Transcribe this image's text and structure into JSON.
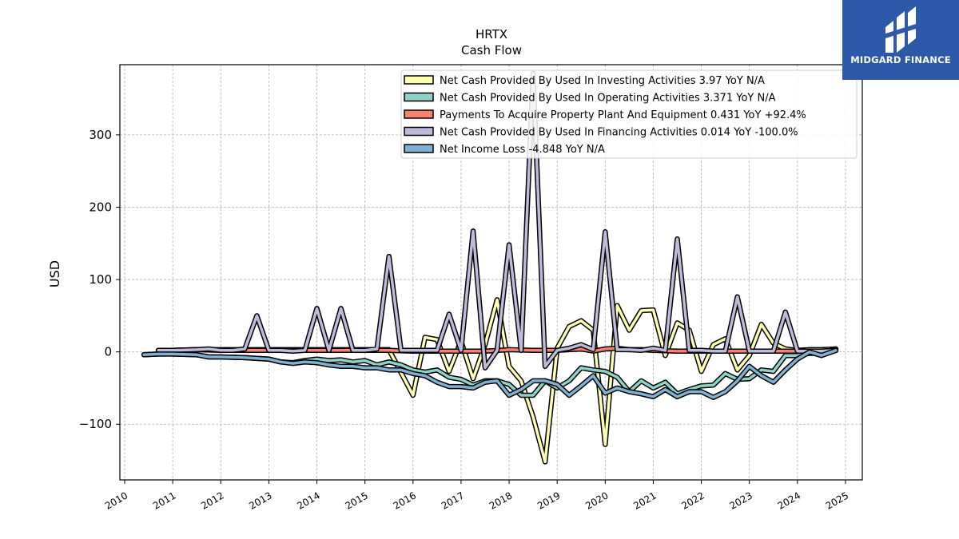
{
  "brand": {
    "name": "MIDGARD FINANCE",
    "bg_color": "#2d59a8"
  },
  "chart_data": {
    "type": "line",
    "title": "HRTX",
    "subtitle": "Cash Flow",
    "ylabel": "USD",
    "xlabel": "",
    "xlim": [
      2009.9,
      2025.35
    ],
    "ylim": [
      -177,
      397
    ],
    "x_ticks": [
      "2010",
      "2011",
      "2012",
      "2013",
      "2014",
      "2015",
      "2016",
      "2017",
      "2018",
      "2019",
      "2020",
      "2021",
      "2022",
      "2023",
      "2024",
      "2025"
    ],
    "y_ticks": [
      -100,
      0,
      100,
      200,
      300
    ],
    "y_tick_labels": [
      "−100",
      "0",
      "100",
      "200",
      "300"
    ],
    "grid": true,
    "legend_position": "top-right",
    "series": [
      {
        "name": "Net Cash Provided By Used In Investing Activities",
        "legend": "Net Cash Provided By Used In Investing Activities  3.97 YoY N/A",
        "color": "#ffffb3",
        "points": [
          [
            2010.7,
            2
          ],
          [
            2011.0,
            2
          ],
          [
            2011.5,
            3
          ],
          [
            2012.0,
            3
          ],
          [
            2012.5,
            3
          ],
          [
            2013.0,
            3
          ],
          [
            2013.5,
            3
          ],
          [
            2014.0,
            3
          ],
          [
            2014.5,
            3
          ],
          [
            2015.0,
            3
          ],
          [
            2015.5,
            3
          ],
          [
            2016.0,
            -60
          ],
          [
            2016.25,
            20
          ],
          [
            2016.5,
            17
          ],
          [
            2016.75,
            -27
          ],
          [
            2017.0,
            15
          ],
          [
            2017.25,
            -37
          ],
          [
            2017.5,
            10
          ],
          [
            2017.75,
            72
          ],
          [
            2018.0,
            -20
          ],
          [
            2018.25,
            -40
          ],
          [
            2018.5,
            -90
          ],
          [
            2018.75,
            -152
          ],
          [
            2019.0,
            5
          ],
          [
            2019.25,
            35
          ],
          [
            2019.5,
            43
          ],
          [
            2019.75,
            30
          ],
          [
            2020.0,
            -128
          ],
          [
            2020.25,
            64
          ],
          [
            2020.5,
            30
          ],
          [
            2020.75,
            57
          ],
          [
            2021.0,
            58
          ],
          [
            2021.25,
            -5
          ],
          [
            2021.5,
            40
          ],
          [
            2021.75,
            30
          ],
          [
            2022.0,
            -27
          ],
          [
            2022.25,
            10
          ],
          [
            2022.5,
            18
          ],
          [
            2022.75,
            -25
          ],
          [
            2023.0,
            -5
          ],
          [
            2023.25,
            38
          ],
          [
            2023.5,
            12
          ],
          [
            2023.75,
            4
          ],
          [
            2024.0,
            2
          ],
          [
            2024.25,
            3
          ],
          [
            2024.5,
            3
          ],
          [
            2024.8,
            4
          ]
        ]
      },
      {
        "name": "Net Cash Provided By Used In Operating Activities",
        "legend": "Net Cash Provided By Used In Operating Activities  3.371 YoY N/A",
        "color": "#8dd3c7",
        "points": [
          [
            2010.4,
            -4
          ],
          [
            2010.7,
            -3
          ],
          [
            2011.0,
            -3
          ],
          [
            2011.5,
            -4
          ],
          [
            2011.75,
            -7
          ],
          [
            2012.0,
            -7
          ],
          [
            2012.5,
            -8
          ],
          [
            2013.0,
            -10
          ],
          [
            2013.25,
            -14
          ],
          [
            2013.5,
            -15
          ],
          [
            2013.75,
            -12
          ],
          [
            2014.0,
            -10
          ],
          [
            2014.25,
            -12
          ],
          [
            2014.5,
            -11
          ],
          [
            2014.75,
            -14
          ],
          [
            2015.0,
            -12
          ],
          [
            2015.25,
            -18
          ],
          [
            2015.5,
            -14
          ],
          [
            2015.75,
            -18
          ],
          [
            2016.0,
            -25
          ],
          [
            2016.25,
            -28
          ],
          [
            2016.5,
            -25
          ],
          [
            2016.75,
            -35
          ],
          [
            2017.0,
            -38
          ],
          [
            2017.25,
            -46
          ],
          [
            2017.5,
            -40
          ],
          [
            2017.75,
            -40
          ],
          [
            2018.0,
            -45
          ],
          [
            2018.25,
            -60
          ],
          [
            2018.5,
            -60
          ],
          [
            2018.75,
            -40
          ],
          [
            2019.0,
            -50
          ],
          [
            2019.25,
            -40
          ],
          [
            2019.5,
            -22
          ],
          [
            2019.75,
            -25
          ],
          [
            2020.0,
            -27
          ],
          [
            2020.25,
            -35
          ],
          [
            2020.5,
            -55
          ],
          [
            2020.75,
            -40
          ],
          [
            2021.0,
            -50
          ],
          [
            2021.25,
            -42
          ],
          [
            2021.5,
            -58
          ],
          [
            2021.75,
            -52
          ],
          [
            2022.0,
            -47
          ],
          [
            2022.25,
            -46
          ],
          [
            2022.5,
            -30
          ],
          [
            2022.75,
            -38
          ],
          [
            2023.0,
            -37
          ],
          [
            2023.25,
            -25
          ],
          [
            2023.5,
            -27
          ],
          [
            2023.75,
            -5
          ],
          [
            2024.0,
            -5
          ],
          [
            2024.25,
            -2
          ],
          [
            2024.5,
            -2
          ],
          [
            2024.8,
            4
          ]
        ]
      },
      {
        "name": "Payments To Acquire Property Plant And Equipment",
        "legend": "Payments To Acquire Property Plant And Equipment  0.431 YoY +92.4%",
        "color": "#fb8072",
        "points": [
          [
            2010.7,
            2
          ],
          [
            2011.0,
            2
          ],
          [
            2011.5,
            3
          ],
          [
            2012.0,
            2
          ],
          [
            2012.5,
            2
          ],
          [
            2013.0,
            2
          ],
          [
            2013.5,
            2
          ],
          [
            2014.0,
            2
          ],
          [
            2014.5,
            2
          ],
          [
            2015.0,
            2
          ],
          [
            2015.5,
            2
          ],
          [
            2016.0,
            1
          ],
          [
            2016.5,
            1
          ],
          [
            2017.0,
            1
          ],
          [
            2017.5,
            1
          ],
          [
            2018.0,
            3
          ],
          [
            2018.5,
            2
          ],
          [
            2019.0,
            2
          ],
          [
            2019.25,
            3
          ],
          [
            2019.5,
            4
          ],
          [
            2019.75,
            1
          ],
          [
            2020.0,
            4
          ],
          [
            2020.25,
            5
          ],
          [
            2020.5,
            3
          ],
          [
            2020.75,
            3
          ],
          [
            2021.0,
            2
          ],
          [
            2021.5,
            1
          ],
          [
            2022.0,
            1
          ],
          [
            2022.5,
            1
          ],
          [
            2023.0,
            1
          ],
          [
            2023.5,
            1
          ],
          [
            2024.0,
            1
          ],
          [
            2024.5,
            1
          ],
          [
            2024.8,
            2
          ]
        ]
      },
      {
        "name": "Net Cash Provided By Used In Financing Activities",
        "legend": "Net Cash Provided By Used In Financing Activities  0.014 YoY -100.0%",
        "color": "#bebada",
        "points": [
          [
            2010.7,
            2
          ],
          [
            2011.0,
            2
          ],
          [
            2011.5,
            3
          ],
          [
            2011.75,
            4
          ],
          [
            2012.0,
            2
          ],
          [
            2012.25,
            2
          ],
          [
            2012.5,
            4
          ],
          [
            2012.75,
            50
          ],
          [
            2013.0,
            2
          ],
          [
            2013.25,
            2
          ],
          [
            2013.5,
            1
          ],
          [
            2013.75,
            2
          ],
          [
            2014.0,
            60
          ],
          [
            2014.25,
            2
          ],
          [
            2014.5,
            60
          ],
          [
            2014.75,
            2
          ],
          [
            2015.0,
            2
          ],
          [
            2015.25,
            4
          ],
          [
            2015.5,
            132
          ],
          [
            2015.75,
            2
          ],
          [
            2016.0,
            2
          ],
          [
            2016.25,
            2
          ],
          [
            2016.5,
            2
          ],
          [
            2016.75,
            52
          ],
          [
            2017.0,
            2
          ],
          [
            2017.25,
            167
          ],
          [
            2017.5,
            -22
          ],
          [
            2017.75,
            2
          ],
          [
            2018.0,
            148
          ],
          [
            2018.25,
            2
          ],
          [
            2018.5,
            385
          ],
          [
            2018.75,
            -20
          ],
          [
            2019.0,
            2
          ],
          [
            2019.25,
            5
          ],
          [
            2019.5,
            10
          ],
          [
            2019.75,
            3
          ],
          [
            2020.0,
            166
          ],
          [
            2020.25,
            3
          ],
          [
            2020.5,
            3
          ],
          [
            2020.75,
            2
          ],
          [
            2021.0,
            5
          ],
          [
            2021.25,
            2
          ],
          [
            2021.5,
            156
          ],
          [
            2021.75,
            2
          ],
          [
            2022.0,
            2
          ],
          [
            2022.25,
            1
          ],
          [
            2022.5,
            1
          ],
          [
            2022.75,
            76
          ],
          [
            2023.0,
            1
          ],
          [
            2023.25,
            1
          ],
          [
            2023.5,
            1
          ],
          [
            2023.75,
            55
          ],
          [
            2024.0,
            1
          ],
          [
            2024.25,
            1
          ],
          [
            2024.5,
            1
          ],
          [
            2024.8,
            2
          ]
        ]
      },
      {
        "name": "Net Income Loss",
        "legend": "Net Income Loss  -4.848 YoY N/A",
        "color": "#80b1d3",
        "points": [
          [
            2010.4,
            -4
          ],
          [
            2010.7,
            -3
          ],
          [
            2011.0,
            -3
          ],
          [
            2011.5,
            -4
          ],
          [
            2011.75,
            -7
          ],
          [
            2012.0,
            -7
          ],
          [
            2012.5,
            -8
          ],
          [
            2013.0,
            -10
          ],
          [
            2013.25,
            -14
          ],
          [
            2013.5,
            -16
          ],
          [
            2013.75,
            -14
          ],
          [
            2014.0,
            -15
          ],
          [
            2014.25,
            -18
          ],
          [
            2014.5,
            -20
          ],
          [
            2014.75,
            -20
          ],
          [
            2015.0,
            -22
          ],
          [
            2015.25,
            -22
          ],
          [
            2015.5,
            -25
          ],
          [
            2015.75,
            -25
          ],
          [
            2016.0,
            -30
          ],
          [
            2016.25,
            -33
          ],
          [
            2016.5,
            -42
          ],
          [
            2016.75,
            -48
          ],
          [
            2017.0,
            -48
          ],
          [
            2017.25,
            -50
          ],
          [
            2017.5,
            -42
          ],
          [
            2017.75,
            -40
          ],
          [
            2018.0,
            -60
          ],
          [
            2018.25,
            -52
          ],
          [
            2018.5,
            -40
          ],
          [
            2018.75,
            -40
          ],
          [
            2019.0,
            -45
          ],
          [
            2019.25,
            -60
          ],
          [
            2019.5,
            -47
          ],
          [
            2019.75,
            -33
          ],
          [
            2020.0,
            -57
          ],
          [
            2020.25,
            -50
          ],
          [
            2020.5,
            -55
          ],
          [
            2020.75,
            -58
          ],
          [
            2021.0,
            -62
          ],
          [
            2021.25,
            -52
          ],
          [
            2021.5,
            -62
          ],
          [
            2021.75,
            -55
          ],
          [
            2022.0,
            -55
          ],
          [
            2022.25,
            -63
          ],
          [
            2022.5,
            -55
          ],
          [
            2022.75,
            -40
          ],
          [
            2023.0,
            -20
          ],
          [
            2023.25,
            -33
          ],
          [
            2023.5,
            -42
          ],
          [
            2023.75,
            -25
          ],
          [
            2024.0,
            -10
          ],
          [
            2024.25,
            0
          ],
          [
            2024.5,
            -5
          ],
          [
            2024.8,
            2
          ]
        ]
      }
    ]
  }
}
